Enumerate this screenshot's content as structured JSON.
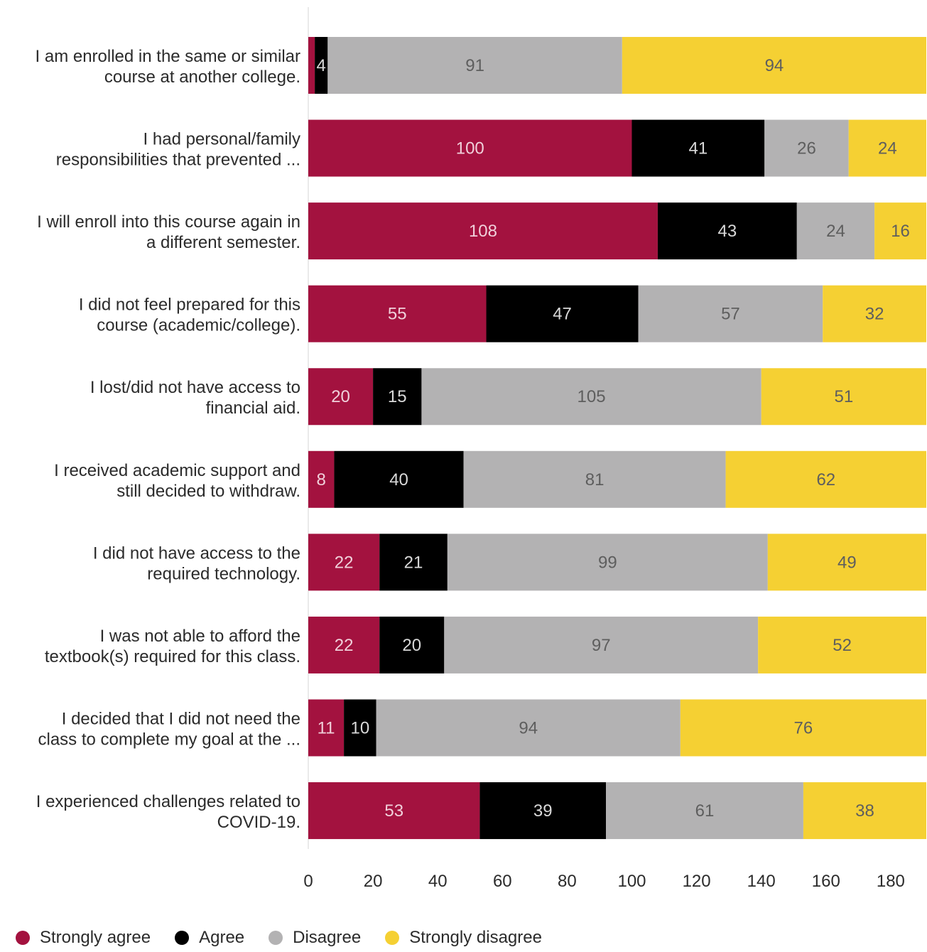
{
  "chart_data": {
    "type": "bar",
    "orientation": "horizontal",
    "stacked": true,
    "categories": [
      [
        "I am enrolled in the same or similar",
        "course at another college."
      ],
      [
        "I had personal/family",
        "responsibilities that prevented ..."
      ],
      [
        "I will enroll into this course again in",
        "a different semester."
      ],
      [
        "I did not feel prepared for this",
        "course (academic/college)."
      ],
      [
        "I lost/did not have access to",
        "financial aid."
      ],
      [
        "I received academic support and",
        "still decided to withdraw."
      ],
      [
        "I did not have access to the",
        "required technology."
      ],
      [
        "I was not able to afford the",
        "textbook(s) required for this class."
      ],
      [
        "I decided that I did not need the",
        "class to complete my goal at the ..."
      ],
      [
        "I experienced challenges related to",
        "COVID-19."
      ]
    ],
    "series": [
      {
        "name": "Strongly agree",
        "color": "#a3123f",
        "label_color": "#f0d0da",
        "values": [
          2,
          100,
          108,
          55,
          20,
          8,
          22,
          22,
          11,
          53
        ],
        "labels": [
          "",
          "100",
          "108",
          "55",
          "20",
          "8",
          "22",
          "22",
          "11",
          "53"
        ]
      },
      {
        "name": "Agree",
        "color": "#000000",
        "label_color": "#d9d9d9",
        "values": [
          4,
          41,
          43,
          47,
          15,
          40,
          21,
          20,
          10,
          39
        ],
        "labels": [
          "4",
          "41",
          "43",
          "47",
          "15",
          "40",
          "21",
          "20",
          "10",
          "39"
        ]
      },
      {
        "name": "Disagree",
        "color": "#b3b2b3",
        "label_color": "#5e5e5e",
        "values": [
          91,
          26,
          24,
          57,
          105,
          81,
          99,
          97,
          94,
          61
        ],
        "labels": [
          "91",
          "26",
          "24",
          "57",
          "105",
          "81",
          "99",
          "97",
          "94",
          "61"
        ]
      },
      {
        "name": "Strongly disagree",
        "color": "#f5d033",
        "label_color": "#5e5e5e",
        "values": [
          94,
          24,
          16,
          32,
          51,
          62,
          49,
          52,
          76,
          38
        ],
        "labels": [
          "94",
          "24",
          "16",
          "32",
          "51",
          "62",
          "49",
          "52",
          "76",
          "38"
        ]
      }
    ],
    "xlim": [
      0,
      191
    ],
    "xticks": [
      0,
      20,
      40,
      60,
      80,
      100,
      120,
      140,
      160,
      180
    ],
    "xlabel": "",
    "ylabel": "",
    "title": "",
    "grid": false,
    "legend_position": "bottom-left"
  }
}
